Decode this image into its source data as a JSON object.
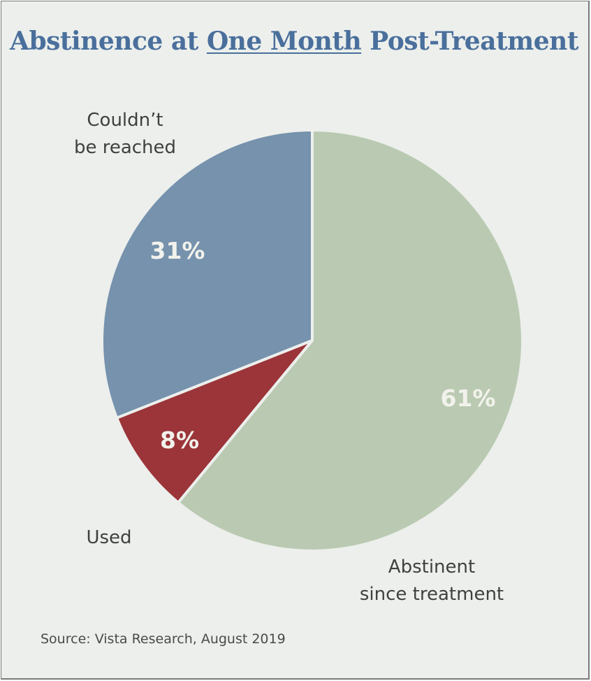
{
  "chart_data": {
    "type": "pie",
    "title": {
      "prefix": "Abstinence at ",
      "emphasis": "One Month",
      "suffix": " Post-Treatment"
    },
    "slices": [
      {
        "name": "Couldn't be reached",
        "label_lines": [
          "Couldn’t",
          "be reached"
        ],
        "value": 31,
        "value_label": "31%",
        "color": "#7692ad"
      },
      {
        "name": "Used",
        "label_lines": [
          "Used"
        ],
        "value": 8,
        "value_label": "8%",
        "color": "#9b353a"
      },
      {
        "name": "Abstinent since treatment",
        "label_lines": [
          "Abstinent",
          "since treatment"
        ],
        "value": 61,
        "value_label": "61%",
        "color": "#bacab2"
      }
    ],
    "start": "12 o'clock",
    "direction": "counterclockwise from top for first slice",
    "legend": "none (direct labels)"
  },
  "source": "Source: Vista Research, August 2019",
  "colors": {
    "background": "#ecefec",
    "title": "#4a6f9c",
    "separator": "#ecefec"
  }
}
